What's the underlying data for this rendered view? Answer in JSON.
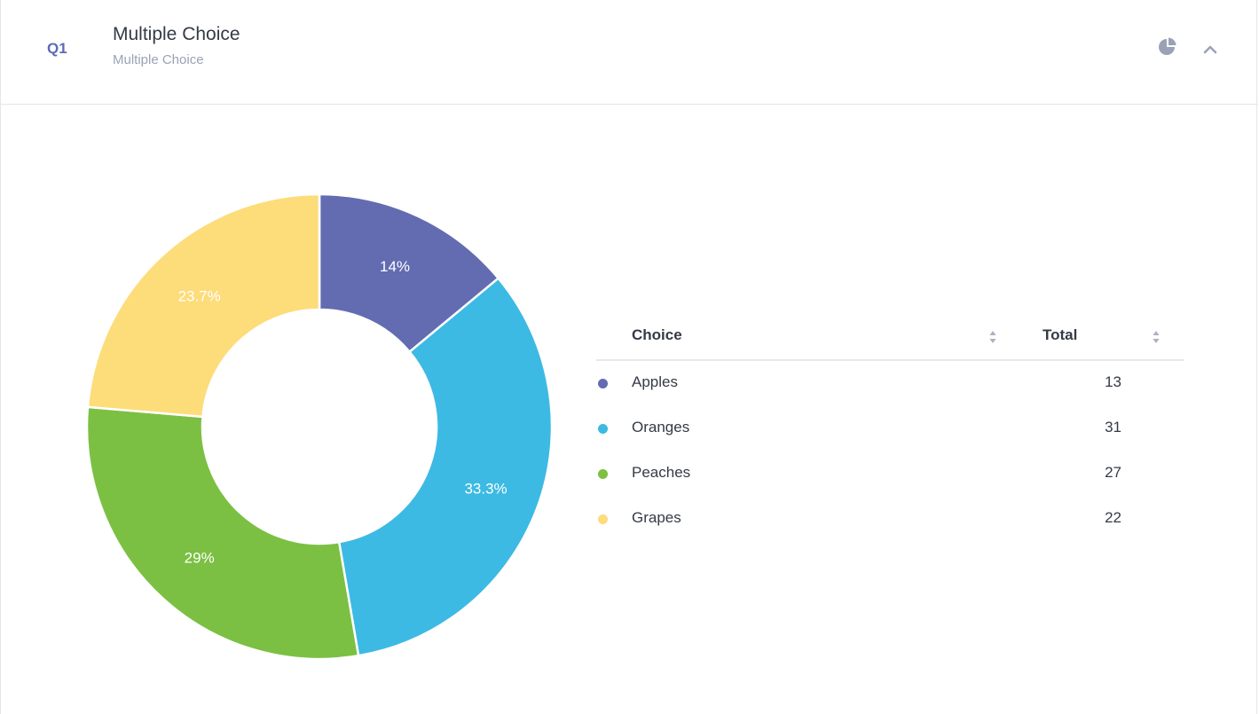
{
  "question": {
    "number": "Q1",
    "title": "Multiple Choice",
    "subtitle": "Multiple Choice"
  },
  "icons": {
    "chart_toggle": "pie-chart-icon",
    "collapse": "chevron-up-icon"
  },
  "table": {
    "headers": {
      "choice": "Choice",
      "total": "Total"
    },
    "rows": [
      {
        "label": "Apples",
        "total": "13",
        "color": "#636bb1"
      },
      {
        "label": "Oranges",
        "total": "31",
        "color": "#3cbae3"
      },
      {
        "label": "Peaches",
        "total": "27",
        "color": "#7bc043"
      },
      {
        "label": "Grapes",
        "total": "22",
        "color": "#fddc7a"
      }
    ]
  },
  "chart_data": {
    "type": "pie",
    "title": "",
    "categories": [
      "Apples",
      "Oranges",
      "Peaches",
      "Grapes"
    ],
    "values": [
      13,
      31,
      27,
      22
    ],
    "labels": [
      "14%",
      "33.3%",
      "29%",
      "23.7%"
    ],
    "colors": [
      "#636bb1",
      "#3cbae3",
      "#7bc043",
      "#fddc7a"
    ],
    "donut": true,
    "legend": "table-right"
  }
}
